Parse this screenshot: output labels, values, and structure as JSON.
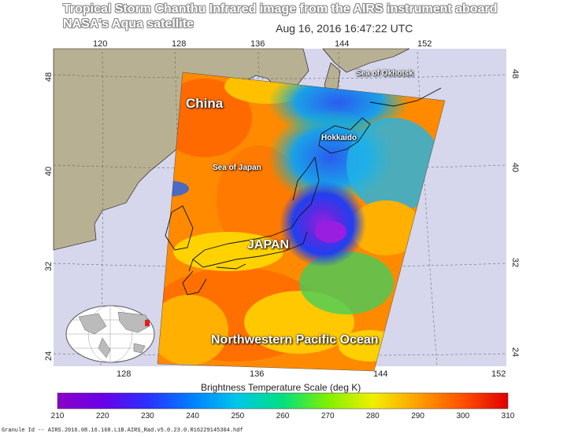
{
  "title": {
    "line1": "Tropical Storm Chanthu  Infrared image from the AIRS instrument aboard",
    "line2": "NASA's Aqua satellite"
  },
  "timestamp": "Aug 16, 2016 16:47:22 UTC",
  "axes": {
    "lon_top": [
      "120",
      "128",
      "136",
      "144",
      "152"
    ],
    "lon_bottom": [
      "128",
      "136",
      "144",
      "152"
    ],
    "lat_left": [
      "48",
      "40",
      "32",
      "24"
    ],
    "lat_right": [
      "48",
      "40",
      "32",
      "24"
    ]
  },
  "places": {
    "china": "China",
    "sea_of_japan": "Sea of Japan",
    "hokkaido": "Hokkaido",
    "sea_of_okhotsk": "Sea of Okhotsk",
    "japan": "JAPAN",
    "nw_pacific": "Northwestern Pacific Ocean"
  },
  "colorbar": {
    "title": "Brightness Temperature Scale (deg K)",
    "ticks": [
      "210",
      "220",
      "230",
      "240",
      "250",
      "260",
      "270",
      "280",
      "290",
      "300",
      "310"
    ]
  },
  "granule_id": "Granule Id -- AIRS.2016.08.16.168.L1B.AIRS_Rad.v5.0.23.0.R16229145304.hdf",
  "colors": {
    "land": "#b8b093",
    "ocean": "#d6d6ec",
    "storm_core": "#8a1fd8"
  }
}
